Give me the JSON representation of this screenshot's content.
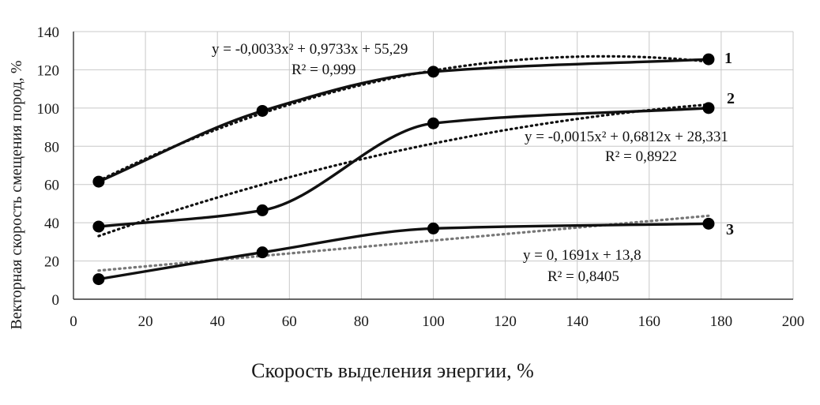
{
  "chart_data": {
    "type": "line",
    "xlabel": "Скорость выделения энергии, %",
    "ylabel": "Векторная скорость смещения пород, %",
    "xlim": [
      0,
      200
    ],
    "ylim": [
      0,
      140
    ],
    "x_ticks": [
      "0",
      "20",
      "40",
      "60",
      "80",
      "100",
      "120",
      "140",
      "160",
      "180",
      "200"
    ],
    "y_ticks": [
      "0",
      "20",
      "40",
      "60",
      "80",
      "100",
      "120",
      "140"
    ],
    "grid": true,
    "series": [
      {
        "name": "1",
        "x": [
          7,
          52.5,
          100,
          176.5
        ],
        "y": [
          61.5,
          98.5,
          119,
          125.5
        ],
        "trendline": {
          "equation": "y = -0,0033x² + 0,9733x + 55,29",
          "r2": "R² = 0,999",
          "coefficients": [
            -0.0033,
            0.9733,
            55.29
          ]
        }
      },
      {
        "name": "2",
        "x": [
          7,
          52.5,
          100,
          176.5
        ],
        "y": [
          38,
          46.5,
          92,
          100
        ],
        "trendline": {
          "equation": "y = -0,0015x² + 0,6812x + 28,331",
          "r2": "R² = 0,8922",
          "coefficients": [
            -0.0015,
            0.6812,
            28.331
          ]
        }
      },
      {
        "name": "3",
        "x": [
          7,
          52.5,
          100,
          176.5
        ],
        "y": [
          10.5,
          24.5,
          37,
          39.5
        ],
        "trendline": {
          "equation": "y = 0, 1691x + 13,8",
          "r2": "R² = 0,8405",
          "coefficients": [
            0,
            0.1691,
            13.8
          ]
        }
      }
    ],
    "colors": {
      "line": "#111111",
      "trend_dark": "#111111",
      "trend_gray": "#777777",
      "grid": "#c8c8c8",
      "axis": "#333333"
    }
  }
}
